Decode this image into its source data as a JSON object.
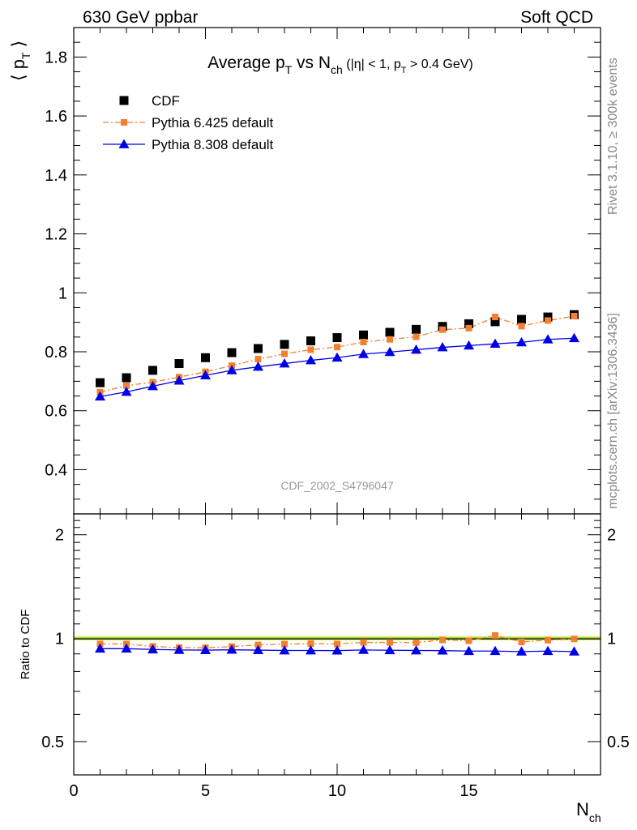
{
  "header": {
    "left": "630 GeV ppbar",
    "right": "Soft QCD"
  },
  "side_labels": {
    "rivet": "Rivet 3.1.10, ≥ 300k events",
    "mcplots": "mcplots.cern.ch [arXiv:1306.3436]"
  },
  "watermark": "CDF_2002_S4796047",
  "chart_data": [
    {
      "type": "scatter",
      "title": {
        "main": "Average p",
        "main_sub": "T",
        "vs": " vs N",
        "vs_sub": "ch",
        "cut_a": " (|η| < 1, p",
        "cut_sub": "T",
        "cut_b": " > 0.4 GeV)"
      },
      "ylabel": {
        "l": "⟨ p",
        "sub": "T",
        "r": " ⟩"
      },
      "xlabel": {
        "main": "N",
        "sub": "ch"
      },
      "xlim": [
        0,
        20
      ],
      "ylim": [
        0.25,
        1.9
      ],
      "yticks": [
        0.4,
        0.6,
        0.8,
        1,
        1.2,
        1.4,
        1.6,
        1.8
      ],
      "ytick_labels": [
        "0.4",
        "0.6",
        "0.8",
        "1",
        "1.2",
        "1.4",
        "1.6",
        "1.8"
      ],
      "x": [
        1,
        2,
        3,
        4,
        5,
        6,
        7,
        8,
        9,
        10,
        11,
        12,
        13,
        14,
        15,
        16,
        17,
        18,
        19
      ],
      "legend_position": "top-left",
      "series": [
        {
          "name": "CDF",
          "marker": "square",
          "color": "#000000",
          "values": [
            0.695,
            0.712,
            0.737,
            0.76,
            0.78,
            0.797,
            0.811,
            0.825,
            0.837,
            0.848,
            0.857,
            0.866,
            0.876,
            0.886,
            0.895,
            0.902,
            0.91,
            0.918,
            0.926
          ]
        },
        {
          "name": "Pythia 6.425 default",
          "marker": "small-square",
          "line": "dash-dot",
          "color": "#f47f2f",
          "values": [
            0.663,
            0.685,
            0.697,
            0.714,
            0.732,
            0.753,
            0.775,
            0.793,
            0.807,
            0.816,
            0.833,
            0.842,
            0.851,
            0.875,
            0.88,
            0.918,
            0.887,
            0.906,
            0.921
          ]
        },
        {
          "name": "Pythia 8.308 default",
          "marker": "triangle",
          "line": "solid",
          "color": "#0000e6",
          "values": [
            0.648,
            0.664,
            0.683,
            0.702,
            0.72,
            0.737,
            0.749,
            0.76,
            0.771,
            0.78,
            0.792,
            0.799,
            0.807,
            0.815,
            0.821,
            0.827,
            0.832,
            0.842,
            0.846
          ]
        }
      ]
    },
    {
      "type": "line",
      "ylabel": "Ratio to CDF",
      "ylim": [
        0.4,
        2.3
      ],
      "log_y": true,
      "yticks": [
        0.5,
        1,
        2
      ],
      "ytick_labels": [
        "0.5",
        "1",
        "2"
      ],
      "xlim": [
        0,
        20
      ],
      "xticks": [
        0,
        5,
        10,
        15
      ],
      "xtick_labels": [
        "0",
        "5",
        "10",
        "15"
      ],
      "x": [
        1,
        2,
        3,
        4,
        5,
        6,
        7,
        8,
        9,
        10,
        11,
        12,
        13,
        14,
        15,
        16,
        17,
        18,
        19
      ],
      "reference": {
        "value": 1,
        "band": [
          0.985,
          1.015
        ],
        "band_color": "#f0f06a",
        "line_color": "#3f9a3f"
      },
      "series": [
        {
          "name": "Pythia 6.425 default",
          "color": "#f47f2f",
          "values": [
            0.962,
            0.962,
            0.946,
            0.939,
            0.938,
            0.945,
            0.956,
            0.961,
            0.964,
            0.962,
            0.972,
            0.972,
            0.971,
            0.988,
            0.983,
            1.018,
            0.975,
            0.987,
            0.995
          ]
        },
        {
          "name": "Pythia 8.308 default",
          "color": "#0000e6",
          "values": [
            0.932,
            0.932,
            0.927,
            0.924,
            0.923,
            0.925,
            0.923,
            0.921,
            0.921,
            0.92,
            0.924,
            0.922,
            0.921,
            0.92,
            0.917,
            0.917,
            0.914,
            0.917,
            0.914
          ]
        }
      ]
    }
  ]
}
